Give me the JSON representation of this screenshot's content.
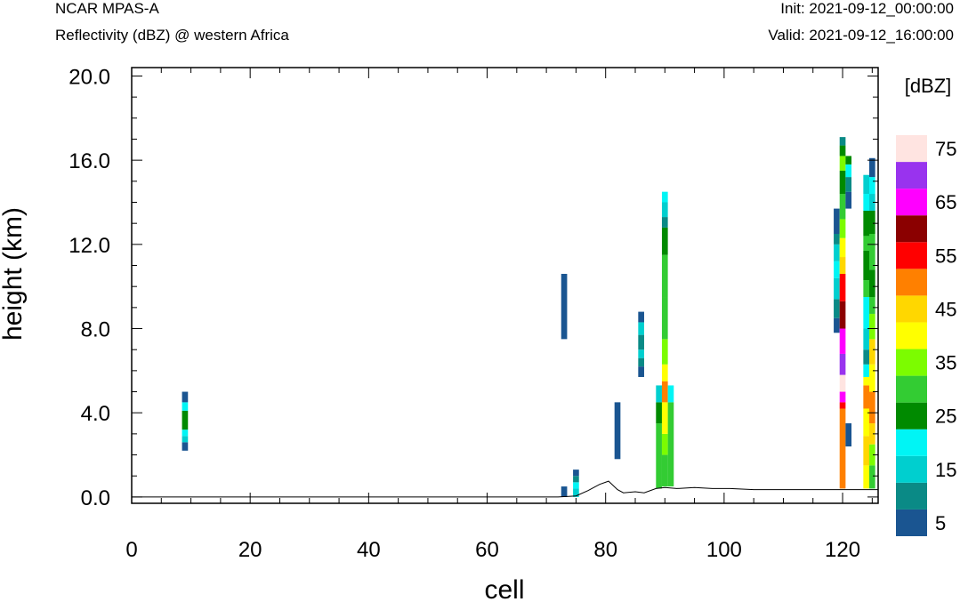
{
  "header": {
    "model": "NCAR MPAS-A",
    "field": "Reflectivity (dBZ) @ western Africa",
    "init": "Init: 2021-09-12_00:00:00",
    "valid": "Valid: 2021-09-12_16:00:00"
  },
  "chart_data": {
    "type": "heatmap",
    "xlabel": "cell",
    "ylabel": "height (km)",
    "xlim": [
      0,
      126
    ],
    "ylim": [
      -0.3,
      20.4
    ],
    "xticks": [
      "0",
      "20",
      "40",
      "60",
      "80",
      "100",
      "120"
    ],
    "yticks": [
      "0.0",
      "4.0",
      "8.0",
      "12.0",
      "16.0",
      "20.0"
    ],
    "colorbar": {
      "unit": "[dBZ]",
      "levels": [
        5,
        10,
        15,
        20,
        25,
        30,
        35,
        40,
        45,
        50,
        55,
        60,
        65,
        70,
        75,
        80
      ],
      "colors": [
        "#1a5591",
        "#0a8a86",
        "#00cfcf",
        "#00f5f5",
        "#008a00",
        "#33cc33",
        "#7cfc00",
        "#ffff00",
        "#ffd700",
        "#ff8000",
        "#ff0000",
        "#8b0000",
        "#ff00ff",
        "#9933ee",
        "#ffe4e1"
      ],
      "labels": [
        "5",
        "15",
        "25",
        "35",
        "45",
        "55",
        "65",
        "75"
      ]
    },
    "terrain": [
      [
        0,
        0
      ],
      [
        72,
        0
      ],
      [
        75,
        0.05
      ],
      [
        77,
        0.3
      ],
      [
        79,
        0.6
      ],
      [
        80.5,
        0.75
      ],
      [
        82,
        0.35
      ],
      [
        83,
        0.2
      ],
      [
        85,
        0.25
      ],
      [
        86.5,
        0.2
      ],
      [
        88.5,
        0.4
      ],
      [
        90,
        0.45
      ],
      [
        92,
        0.4
      ],
      [
        95,
        0.45
      ],
      [
        98,
        0.4
      ],
      [
        101,
        0.4
      ],
      [
        105,
        0.35
      ],
      [
        110,
        0.35
      ],
      [
        115,
        0.35
      ],
      [
        119,
        0.35
      ],
      [
        122,
        0.35
      ],
      [
        124,
        0.35
      ],
      [
        126,
        0.35
      ]
    ],
    "columns": [
      {
        "cell": 9,
        "segments": [
          [
            2.2,
            2.6,
            5
          ],
          [
            2.6,
            2.9,
            15
          ],
          [
            2.9,
            3.2,
            20
          ],
          [
            3.2,
            4.1,
            25
          ],
          [
            4.1,
            4.5,
            20
          ],
          [
            4.5,
            5.0,
            5
          ]
        ]
      },
      {
        "cell": 73,
        "segments": [
          [
            7.5,
            10.6,
            5
          ]
        ]
      },
      {
        "cell": 73,
        "segments": [
          [
            0.0,
            0.5,
            5
          ]
        ]
      },
      {
        "cell": 75,
        "segments": [
          [
            0.0,
            0.4,
            15
          ],
          [
            0.4,
            0.7,
            20
          ],
          [
            0.7,
            1.0,
            10
          ],
          [
            1.0,
            1.3,
            5
          ]
        ]
      },
      {
        "cell": 82,
        "segments": [
          [
            1.8,
            4.5,
            5
          ]
        ]
      },
      {
        "cell": 86,
        "segments": [
          [
            5.7,
            6.2,
            5
          ],
          [
            6.2,
            6.6,
            10
          ],
          [
            6.6,
            7.0,
            15
          ],
          [
            7.0,
            7.7,
            10
          ],
          [
            7.7,
            8.3,
            15
          ],
          [
            8.3,
            8.8,
            5
          ]
        ]
      },
      {
        "cell": 89,
        "segments": [
          [
            0.4,
            3.5,
            30
          ],
          [
            3.5,
            4.5,
            25
          ],
          [
            4.5,
            5.3,
            15
          ]
        ]
      },
      {
        "cell": 90,
        "segments": [
          [
            0.5,
            2.0,
            30
          ],
          [
            2.0,
            3.0,
            35
          ],
          [
            3.0,
            4.5,
            40
          ],
          [
            4.5,
            5.5,
            50
          ],
          [
            5.5,
            6.3,
            40
          ],
          [
            6.3,
            7.5,
            35
          ],
          [
            7.5,
            9.5,
            30
          ],
          [
            9.5,
            11.5,
            30
          ],
          [
            11.5,
            12.8,
            25
          ],
          [
            12.8,
            13.3,
            10
          ],
          [
            13.3,
            14.0,
            15
          ],
          [
            14.0,
            14.5,
            20
          ]
        ]
      },
      {
        "cell": 91,
        "segments": [
          [
            0.5,
            4.5,
            30
          ],
          [
            4.5,
            5.3,
            20
          ]
        ]
      },
      {
        "cell": 119,
        "segments": [
          [
            7.8,
            8.5,
            5
          ],
          [
            8.5,
            9.4,
            10
          ],
          [
            9.4,
            10.4,
            15
          ],
          [
            10.4,
            11.2,
            20
          ],
          [
            11.2,
            12.0,
            15
          ],
          [
            12.0,
            12.5,
            10
          ],
          [
            12.5,
            13.7,
            5
          ]
        ]
      },
      {
        "cell": 120,
        "segments": [
          [
            0.4,
            4.2,
            50
          ],
          [
            4.2,
            4.5,
            55
          ],
          [
            4.5,
            5.0,
            65
          ],
          [
            5.0,
            5.8,
            75
          ],
          [
            5.8,
            6.8,
            70
          ],
          [
            6.8,
            8.0,
            65
          ],
          [
            8.0,
            9.3,
            60
          ],
          [
            9.3,
            10.6,
            55
          ],
          [
            10.6,
            11.4,
            45
          ],
          [
            11.4,
            12.3,
            40
          ],
          [
            12.3,
            13.2,
            35
          ],
          [
            13.2,
            14.4,
            30
          ],
          [
            14.4,
            15.5,
            25
          ],
          [
            15.5,
            16.2,
            35
          ],
          [
            16.2,
            16.7,
            25
          ],
          [
            16.7,
            17.1,
            10
          ]
        ]
      },
      {
        "cell": 121,
        "segments": [
          [
            2.4,
            3.5,
            5
          ]
        ]
      },
      {
        "cell": 121,
        "segments": [
          [
            13.7,
            14.5,
            5
          ],
          [
            14.5,
            15.2,
            10
          ],
          [
            15.2,
            15.8,
            20
          ],
          [
            15.8,
            16.2,
            25
          ]
        ]
      },
      {
        "cell": 124,
        "segments": [
          [
            0.4,
            1.5,
            40
          ],
          [
            1.5,
            2.9,
            45
          ],
          [
            2.9,
            4.2,
            40
          ],
          [
            4.2,
            5.3,
            50
          ],
          [
            5.3,
            5.7,
            40
          ],
          [
            5.7,
            6.3,
            20
          ],
          [
            6.3,
            7.0,
            10
          ],
          [
            7.0,
            8.0,
            15
          ],
          [
            8.0,
            9.5,
            20
          ],
          [
            9.5,
            10.3,
            30
          ],
          [
            10.3,
            11.7,
            25
          ],
          [
            11.7,
            12.4,
            30
          ],
          [
            12.4,
            13.6,
            25
          ],
          [
            13.6,
            14.4,
            20
          ],
          [
            14.4,
            15.3,
            15
          ]
        ]
      },
      {
        "cell": 125,
        "segments": [
          [
            0.4,
            1.5,
            30
          ],
          [
            1.5,
            2.5,
            35
          ],
          [
            2.5,
            3.5,
            45
          ],
          [
            3.5,
            5.0,
            50
          ],
          [
            5.0,
            6.3,
            40
          ],
          [
            6.3,
            7.5,
            45
          ],
          [
            7.5,
            8.7,
            35
          ],
          [
            8.7,
            9.5,
            30
          ],
          [
            9.5,
            10.8,
            25
          ],
          [
            10.8,
            12.5,
            30
          ],
          [
            12.5,
            13.6,
            25
          ],
          [
            13.6,
            14.4,
            15
          ],
          [
            14.4,
            15.2,
            20
          ],
          [
            15.2,
            16.1,
            5
          ]
        ]
      }
    ]
  }
}
